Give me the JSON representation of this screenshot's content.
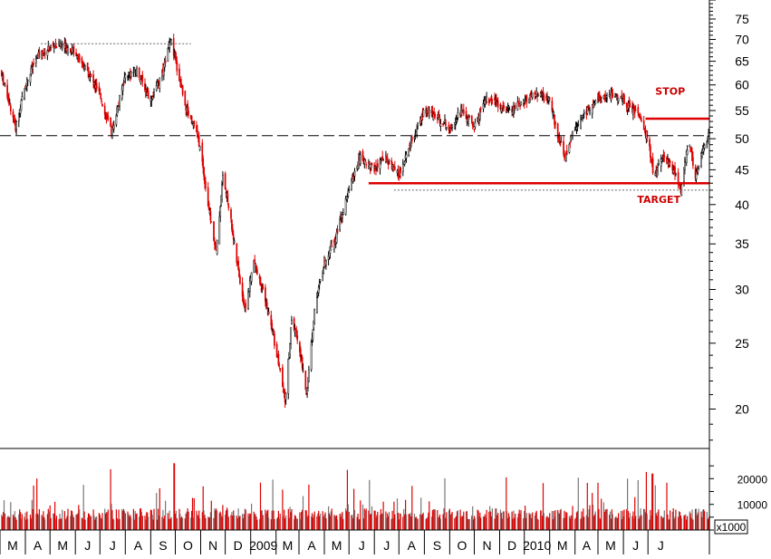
{
  "chart_data": {
    "type": "candlestick",
    "price_axis": {
      "scale": "log",
      "ticks": [
        20,
        25,
        30,
        35,
        40,
        45,
        50,
        55,
        60,
        65,
        70,
        75
      ],
      "range": [
        17.5,
        80
      ]
    },
    "volume_axis": {
      "ticks": [
        10000,
        20000
      ],
      "tick_labels": [
        "10000",
        "20000"
      ],
      "unit_label": "x1000",
      "range": [
        0,
        30000
      ]
    },
    "x_axis": {
      "months": [
        "M",
        "A",
        "M",
        "J",
        "J",
        "A",
        "S",
        "O",
        "N",
        "D",
        "2009",
        "M",
        "A",
        "M",
        "J",
        "J",
        "A",
        "S",
        "O",
        "N",
        "D",
        "2010",
        "M",
        "A",
        "M",
        "J",
        "J"
      ],
      "start": "2008-03-01",
      "end": "2010-07-15"
    },
    "price_path": [
      [
        "2008-03-01",
        63
      ],
      [
        "2008-03-10",
        58
      ],
      [
        "2008-03-20",
        52
      ],
      [
        "2008-04-01",
        60
      ],
      [
        "2008-04-15",
        66
      ],
      [
        "2008-05-01",
        68
      ],
      [
        "2008-05-15",
        69
      ],
      [
        "2008-06-01",
        67
      ],
      [
        "2008-06-15",
        63
      ],
      [
        "2008-07-01",
        58
      ],
      [
        "2008-07-15",
        51
      ],
      [
        "2008-08-01",
        62
      ],
      [
        "2008-08-15",
        63
      ],
      [
        "2008-09-01",
        57
      ],
      [
        "2008-09-15",
        62
      ],
      [
        "2008-09-25",
        70
      ],
      [
        "2008-10-05",
        62
      ],
      [
        "2008-10-15",
        55
      ],
      [
        "2008-10-25",
        52
      ],
      [
        "2008-11-01",
        48
      ],
      [
        "2008-11-10",
        40
      ],
      [
        "2008-11-20",
        34
      ],
      [
        "2008-11-28",
        44
      ],
      [
        "2008-12-05",
        40
      ],
      [
        "2008-12-15",
        33
      ],
      [
        "2008-12-25",
        28
      ],
      [
        "2009-01-05",
        33
      ],
      [
        "2009-01-15",
        30
      ],
      [
        "2009-01-25",
        27
      ],
      [
        "2009-02-05",
        23
      ],
      [
        "2009-02-12",
        20.5
      ],
      [
        "2009-02-20",
        27
      ],
      [
        "2009-03-01",
        25
      ],
      [
        "2009-03-10",
        21
      ],
      [
        "2009-03-20",
        28
      ],
      [
        "2009-04-01",
        33
      ],
      [
        "2009-04-15",
        36
      ],
      [
        "2009-05-01",
        42
      ],
      [
        "2009-05-15",
        47
      ],
      [
        "2009-06-01",
        45
      ],
      [
        "2009-06-15",
        47
      ],
      [
        "2009-07-01",
        44
      ],
      [
        "2009-07-15",
        49
      ],
      [
        "2009-08-01",
        55
      ],
      [
        "2009-08-15",
        54
      ],
      [
        "2009-09-01",
        52
      ],
      [
        "2009-09-15",
        55
      ],
      [
        "2009-10-01",
        52
      ],
      [
        "2009-10-15",
        57
      ],
      [
        "2009-11-01",
        56
      ],
      [
        "2009-11-15",
        55
      ],
      [
        "2009-12-01",
        57
      ],
      [
        "2009-12-15",
        58
      ],
      [
        "2010-01-01",
        57
      ],
      [
        "2010-01-10",
        51
      ],
      [
        "2010-01-20",
        47
      ],
      [
        "2010-02-01",
        52
      ],
      [
        "2010-02-15",
        55
      ],
      [
        "2010-03-01",
        57
      ],
      [
        "2010-03-15",
        58
      ],
      [
        "2010-04-01",
        57
      ],
      [
        "2010-04-20",
        54
      ],
      [
        "2010-05-01",
        50
      ],
      [
        "2010-05-08",
        44
      ],
      [
        "2010-05-20",
        47
      ],
      [
        "2010-06-01",
        45
      ],
      [
        "2010-06-10",
        42
      ],
      [
        "2010-06-20",
        50
      ],
      [
        "2010-06-28",
        44
      ],
      [
        "2010-07-05",
        47
      ],
      [
        "2010-07-15",
        51
      ]
    ],
    "reference_lines": [
      {
        "name": "prior-high",
        "style": "dotted",
        "color": "#666666",
        "y": 69,
        "x_start": "2008-04-20",
        "x_end": "2008-10-20"
      },
      {
        "name": "support-dashed",
        "style": "dashed",
        "color": "#000000",
        "y": 50.5,
        "x_start": "2008-03-01",
        "x_end": "2010-07-15"
      },
      {
        "name": "neckline",
        "style": "solid",
        "color": "#dd0000",
        "y": 43,
        "x_start": "2009-05-25",
        "x_end": "2010-07-15"
      },
      {
        "name": "lower-dotted",
        "style": "dotted",
        "color": "#666666",
        "y": 42,
        "x_start": "2009-06-25",
        "x_end": "2010-07-15"
      },
      {
        "name": "stop-line",
        "style": "solid",
        "color": "#dd0000",
        "y": 53.5,
        "x_start": "2010-04-28",
        "x_end": "2010-07-15"
      }
    ],
    "annotations": [
      {
        "name": "stop-label",
        "text": "STOP",
        "x": "2010-05-10",
        "y": 58
      },
      {
        "name": "target-label",
        "text": "TARGET",
        "x": "2010-04-18",
        "y": 40.2
      }
    ],
    "grid": false,
    "colors": {
      "bull": "#000000",
      "bear": "#dd0000",
      "volume_up": "#dd0000",
      "volume_down": "#777777"
    }
  }
}
